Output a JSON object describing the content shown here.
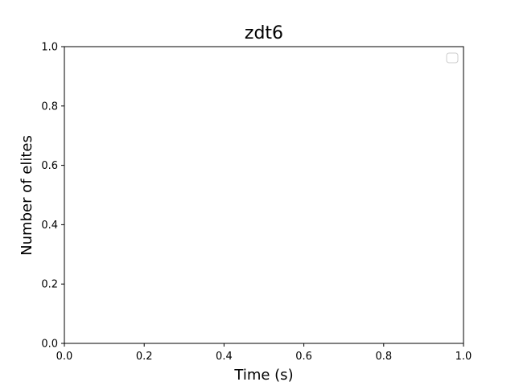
{
  "chart_data": {
    "type": "line",
    "title": "zdt6",
    "xlabel": "Time (s)",
    "ylabel": "Number of elites",
    "xlim": [
      0.0,
      1.0
    ],
    "ylim": [
      0.0,
      1.0
    ],
    "xticks": [
      "0.0",
      "0.2",
      "0.4",
      "0.6",
      "0.8",
      "1.0"
    ],
    "yticks": [
      "0.0",
      "0.2",
      "0.4",
      "0.6",
      "0.8",
      "1.0"
    ],
    "series": [],
    "legend": {
      "placement": "top-right",
      "entries": []
    },
    "grid": false
  }
}
